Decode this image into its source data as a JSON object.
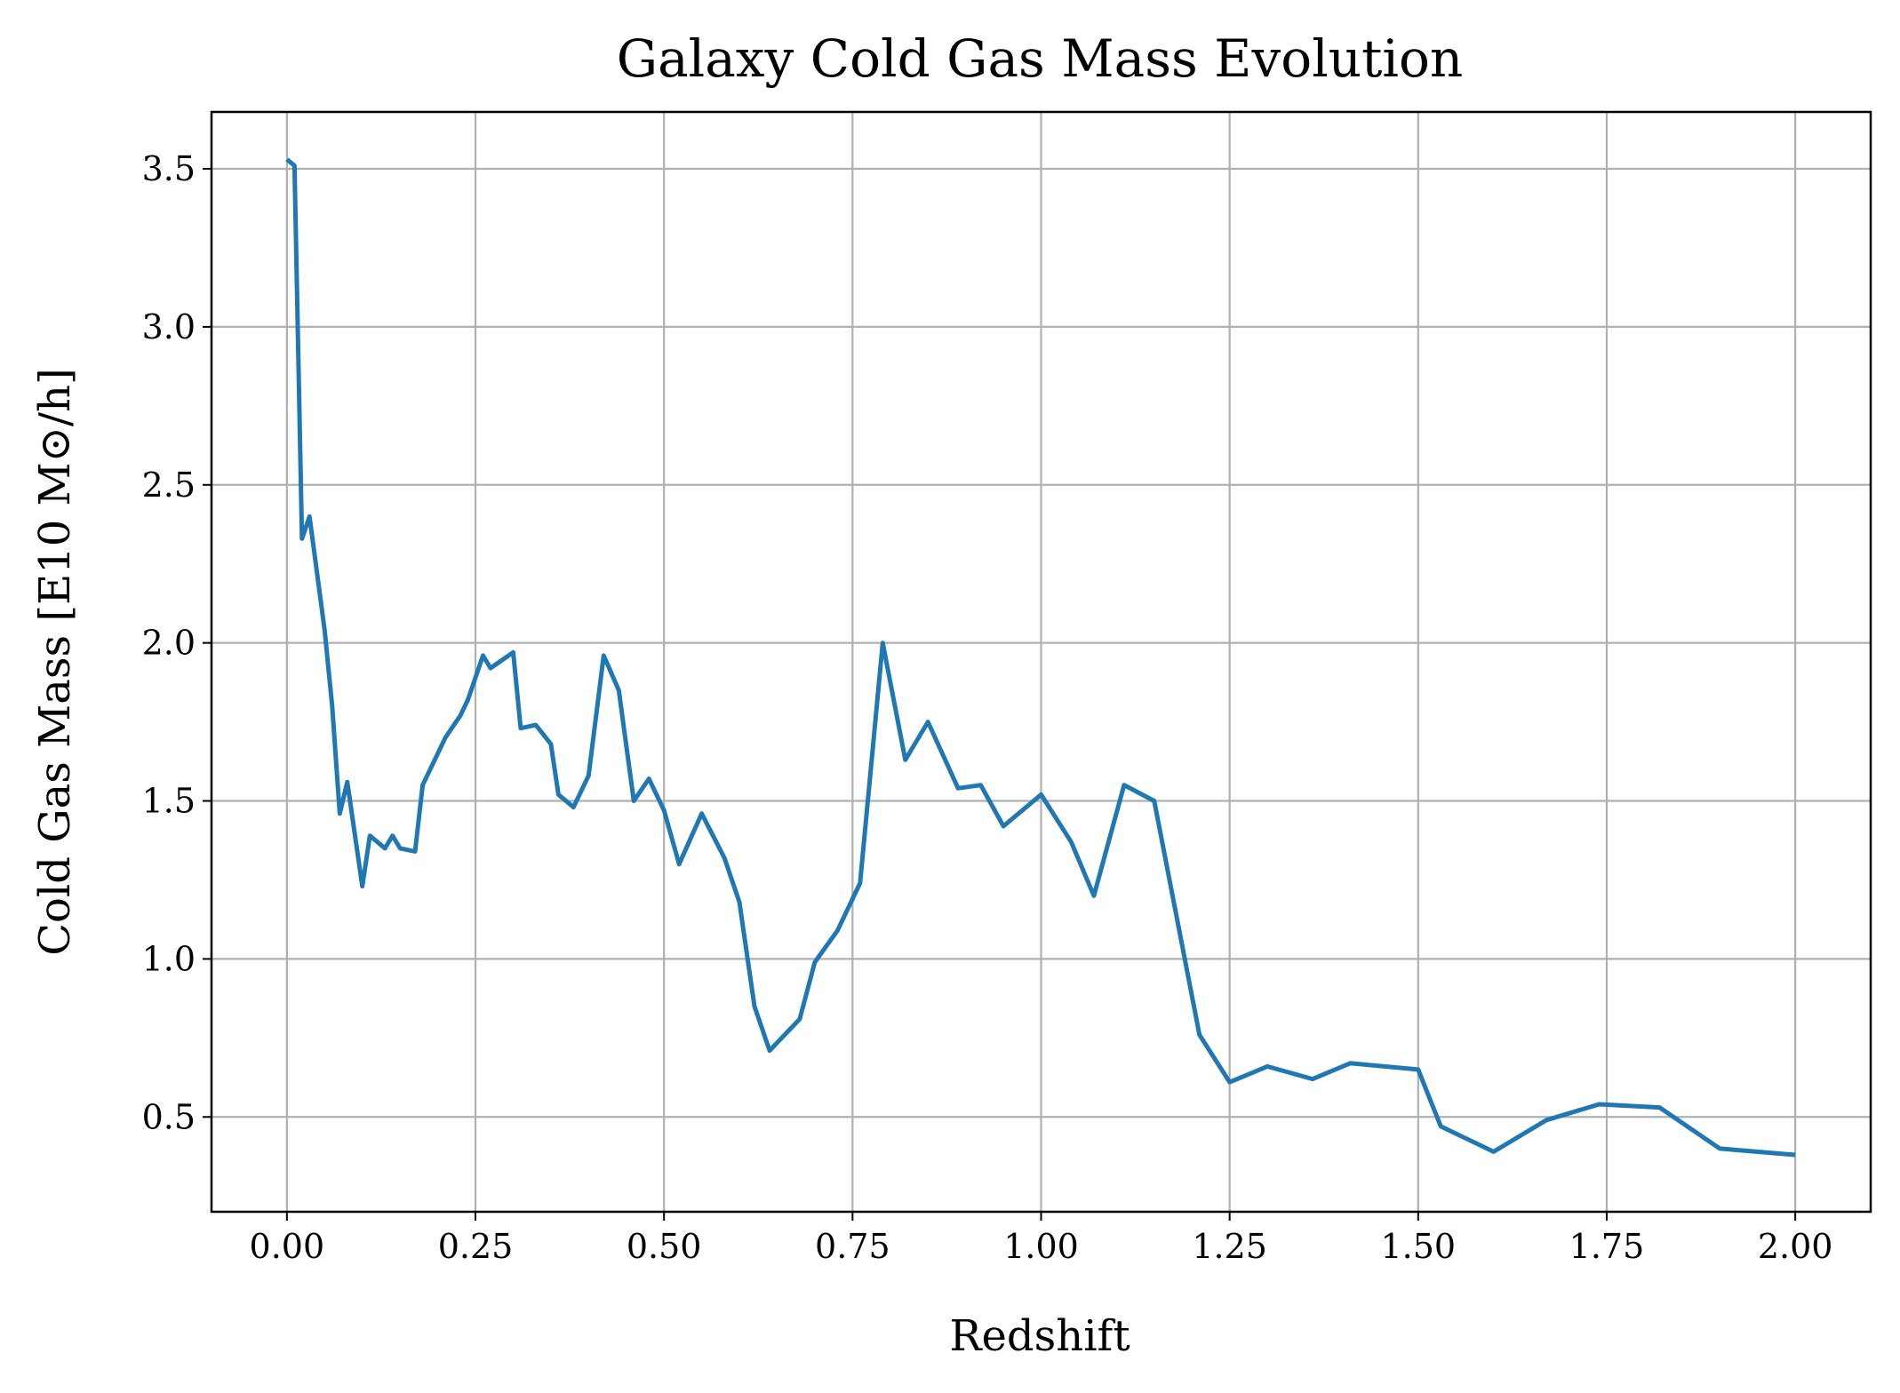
{
  "chart_data": {
    "type": "line",
    "title": "Galaxy Cold Gas Mass Evolution",
    "xlabel": "Redshift",
    "ylabel": "Cold Gas Mass [E10 M⊙/h]",
    "xlim": [
      -0.1,
      2.1
    ],
    "ylim": [
      0.2,
      3.68
    ],
    "x_ticks": [
      0.0,
      0.25,
      0.5,
      0.75,
      1.0,
      1.25,
      1.5,
      1.75,
      2.0
    ],
    "x_tick_labels": [
      "0.00",
      "0.25",
      "0.50",
      "0.75",
      "1.00",
      "1.25",
      "1.50",
      "1.75",
      "2.00"
    ],
    "y_ticks": [
      0.5,
      1.0,
      1.5,
      2.0,
      2.5,
      3.0,
      3.5
    ],
    "y_tick_labels": [
      "0.5",
      "1.0",
      "1.5",
      "2.0",
      "2.5",
      "3.0",
      "3.5"
    ],
    "grid": true,
    "color": "#1f77b4",
    "series": [
      {
        "x": [
          0.0,
          0.01,
          0.02,
          0.03,
          0.05,
          0.06,
          0.07,
          0.08,
          0.1,
          0.11,
          0.13,
          0.14,
          0.15,
          0.17,
          0.18,
          0.21,
          0.23,
          0.24,
          0.26,
          0.27,
          0.3,
          0.31,
          0.33,
          0.35,
          0.36,
          0.38,
          0.4,
          0.42,
          0.44,
          0.46,
          0.48,
          0.5,
          0.52,
          0.55,
          0.58,
          0.6,
          0.62,
          0.64,
          0.68,
          0.7,
          0.73,
          0.76,
          0.79,
          0.82,
          0.85,
          0.89,
          0.92,
          0.95,
          1.0,
          1.04,
          1.07,
          1.11,
          1.15,
          1.21,
          1.25,
          1.3,
          1.36,
          1.41,
          1.5,
          1.53,
          1.6,
          1.67,
          1.74,
          1.82,
          1.9,
          2.0
        ],
        "y": [
          3.53,
          3.51,
          2.33,
          2.4,
          2.04,
          1.8,
          1.46,
          1.56,
          1.23,
          1.39,
          1.35,
          1.39,
          1.35,
          1.34,
          1.55,
          1.7,
          1.77,
          1.82,
          1.96,
          1.92,
          1.97,
          1.73,
          1.74,
          1.68,
          1.52,
          1.48,
          1.58,
          1.96,
          1.85,
          1.5,
          1.57,
          1.47,
          1.3,
          1.46,
          1.32,
          1.18,
          0.85,
          0.71,
          0.81,
          0.99,
          1.09,
          1.24,
          2.0,
          1.63,
          1.75,
          1.54,
          1.55,
          1.42,
          1.52,
          1.37,
          1.2,
          1.55,
          1.5,
          0.76,
          0.61,
          0.66,
          0.62,
          0.67,
          0.65,
          0.47,
          0.39,
          0.49,
          0.54,
          0.53,
          0.4,
          0.38
        ]
      }
    ]
  }
}
